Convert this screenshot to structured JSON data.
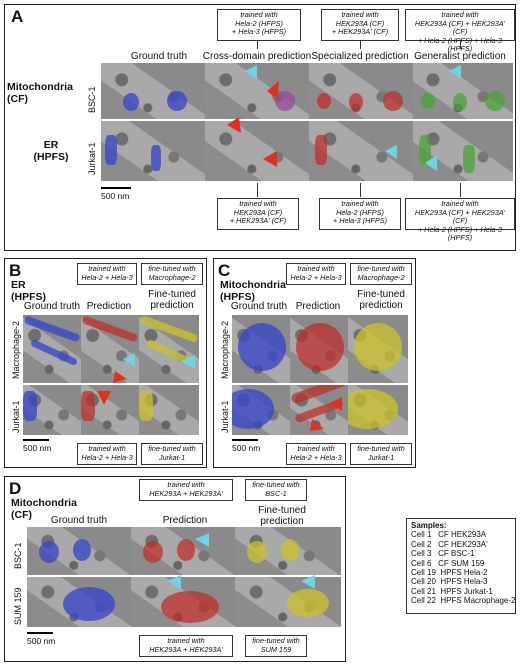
{
  "panelA": {
    "label": "A",
    "row1_title": "Mitochondria\n(CF)",
    "row2_title": "ER\n(HPFS)",
    "cols": [
      "Ground truth",
      "Cross-domain prediction",
      "Specialized prediction",
      "Generalist prediction"
    ],
    "top_boxes": [
      "trained with\nHela-2 (HFPS)\n+ Hela-3 (HFPS)",
      "trained with\nHEK293A (CF)\n+ HEK293A' (CF)",
      "trained with\nHEK293A (CF) + HEK293A' (CF)\n+ Hela-2 (HPFS) + Hela-3 (HPFS)"
    ],
    "bottom_boxes": [
      "trained with\nHEK293A (CF)\n+ HEK293A' (CF)",
      "trained with\nHela-2 (HFPS)\n+ Hela-3 (HFPS)",
      "trained with\nHEK293A (CF) + HEK293A' (CF)\n+ Hela-2 (HPFS) + Hela-3 (HPFS)"
    ],
    "rows": [
      "BSC-1",
      "Jurkat-1"
    ],
    "scale": "500 nm"
  },
  "panelB": {
    "label": "B",
    "title": "ER\n(HPFS)",
    "cols": [
      "Ground truth",
      "Prediction",
      "Fine-tuned\nprediction"
    ],
    "top_boxes": [
      "trained with\nHela-2 + Hela-3",
      "fine-tuned with\nMacrophage-2"
    ],
    "bottom_boxes": [
      "trained with\nHela-2 + Hela-3",
      "fine-tuned with\nJurkat-1"
    ],
    "rows": [
      "Macrophage-2",
      "Jurkat-1"
    ],
    "scale": "500 nm"
  },
  "panelC": {
    "label": "C",
    "title": "Mitochondria\n(HPFS)",
    "cols": [
      "Ground truth",
      "Prediction",
      "Fine-tuned\nprediction"
    ],
    "top_boxes": [
      "trained with\nHela-2 + Hela-3",
      "fine-tuned with\nMacrophage-2"
    ],
    "bottom_boxes": [
      "trained with\nHela-2 + Hela-3",
      "fine-tuned with\nJurkat-1"
    ],
    "rows": [
      "Macrophage-2",
      "Jurkat-1"
    ],
    "scale": "500 nm"
  },
  "panelD": {
    "label": "D",
    "title": "Mitochondria\n(CF)",
    "cols": [
      "Ground truth",
      "Prediction",
      "Fine-tuned\nprediction"
    ],
    "top_boxes": [
      "trained with\nHEK293A + HEK293A'",
      "fine-tuned with\nBSC-1"
    ],
    "bottom_boxes": [
      "trained with\nHEK293A + HEK293A'",
      "fine-tuned with\nSUM 159"
    ],
    "rows": [
      "BSC-1",
      "SUM 159"
    ],
    "scale": "500 nm"
  },
  "samples": {
    "title": "Samples:",
    "items": [
      "Cell 1   CF HEK293A",
      "Cell 2   CF HEK293A'",
      "Cell 3   CF BSC-1",
      "Cell 6   CF SUM 159",
      "Cell 19  HPFS Hela-2",
      "Cell 20  HPFS Hela-3",
      "Cell 21  HPFS Jurkat-1",
      "Cell 22  HPFS Macrophage-2"
    ]
  },
  "colors": {
    "ground_truth": "#3746c8",
    "prediction": "#be2d28",
    "fine_tuned": "#cdc328",
    "generalist": "#46a532",
    "arrow_red": "#e0301e",
    "arrow_cyan": "#6fd3e6"
  }
}
